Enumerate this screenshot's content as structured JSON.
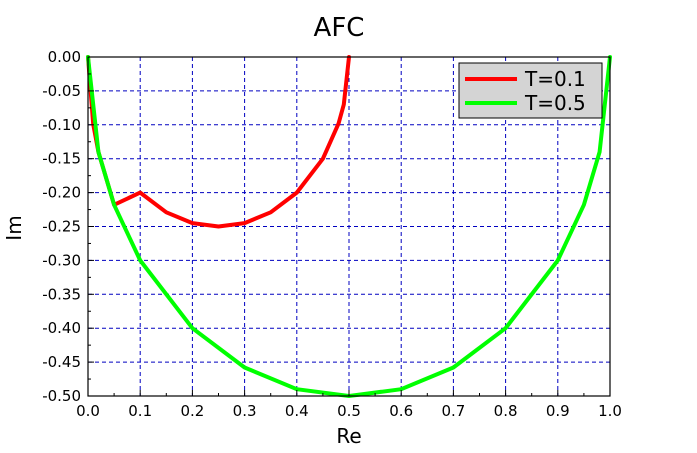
{
  "chart_data": {
    "type": "line",
    "title": "AFC",
    "xlabel": "Re",
    "ylabel": "Im",
    "xlim": [
      0.0,
      1.0
    ],
    "ylim": [
      -0.5,
      0.0
    ],
    "x_ticks": [
      "0.0",
      "0.1",
      "0.2",
      "0.3",
      "0.4",
      "0.5",
      "0.6",
      "0.7",
      "0.8",
      "0.9",
      "1.0"
    ],
    "y_ticks": [
      "0.00",
      "-0.05",
      "-0.10",
      "-0.15",
      "-0.20",
      "-0.25",
      "-0.30",
      "-0.35",
      "-0.40",
      "-0.45",
      "-0.50"
    ],
    "grid": true,
    "legend_position": "top-right",
    "series": [
      {
        "name": "T=0.1",
        "color": "#ff0000",
        "description_shape": "semicircle",
        "x": [
          0.0,
          0.01,
          0.02,
          0.05,
          0.1,
          0.15,
          0.2,
          0.25,
          0.3,
          0.35,
          0.4,
          0.45,
          0.48,
          0.49,
          0.5
        ],
        "y": [
          0.0,
          -0.099,
          -0.14,
          -0.218,
          -0.2,
          -0.229,
          -0.245,
          -0.25,
          -0.245,
          -0.229,
          -0.2,
          -0.15,
          -0.098,
          -0.07,
          0.0
        ]
      },
      {
        "name": "T=0.5",
        "color": "#00ff00",
        "description_shape": "semicircle",
        "x": [
          0.0,
          0.02,
          0.05,
          0.1,
          0.2,
          0.3,
          0.4,
          0.5,
          0.6,
          0.7,
          0.8,
          0.9,
          0.95,
          0.98,
          1.0
        ],
        "y": [
          0.0,
          -0.14,
          -0.218,
          -0.3,
          -0.4,
          -0.458,
          -0.49,
          -0.5,
          -0.49,
          -0.458,
          -0.4,
          -0.3,
          -0.218,
          -0.14,
          0.0
        ]
      }
    ]
  }
}
